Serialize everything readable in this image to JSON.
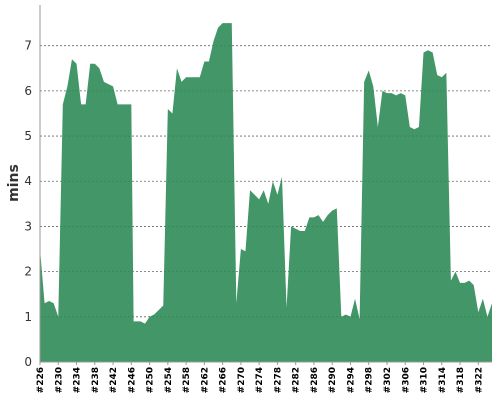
{
  "colors": {
    "area_fill": "#2e8b57",
    "area_opacity": 0.9,
    "grid": "#666666",
    "axis": "#999999",
    "background": "#ffffff"
  },
  "chart_data": {
    "type": "area",
    "title": "",
    "xlabel": "",
    "ylabel": "mins",
    "ylim": [
      0,
      7.9
    ],
    "yticks": [
      0,
      1,
      2,
      3,
      4,
      5,
      6,
      7
    ],
    "grid": true,
    "grid_style": "dashed-horizontal",
    "legend": "none",
    "x_range": [
      226,
      324
    ],
    "x_tick_labels": [
      "#226",
      "#230",
      "#234",
      "#238",
      "#242",
      "#246",
      "#250",
      "#254",
      "#258",
      "#262",
      "#266",
      "#270",
      "#274",
      "#278",
      "#282",
      "#286",
      "#290",
      "#294",
      "#298",
      "#302",
      "#306",
      "#310",
      "#314",
      "#318",
      "#322"
    ],
    "series": [
      {
        "points": [
          [
            226,
            2.5
          ],
          [
            227,
            1.3
          ],
          [
            228,
            1.35
          ],
          [
            229,
            1.3
          ],
          [
            230,
            1.0
          ],
          [
            231,
            5.7
          ],
          [
            232,
            6.1
          ],
          [
            233,
            6.7
          ],
          [
            234,
            6.6
          ],
          [
            235,
            5.7
          ],
          [
            236,
            5.7
          ],
          [
            237,
            6.6
          ],
          [
            238,
            6.6
          ],
          [
            239,
            6.5
          ],
          [
            240,
            6.2
          ],
          [
            241,
            6.15
          ],
          [
            242,
            6.1
          ],
          [
            243,
            5.7
          ],
          [
            244,
            5.7
          ],
          [
            245,
            5.7
          ],
          [
            246,
            5.7
          ],
          [
            246.5,
            0.9
          ],
          [
            247,
            0.9
          ],
          [
            248,
            0.9
          ],
          [
            249,
            0.85
          ],
          [
            250,
            1.0
          ],
          [
            251,
            1.05
          ],
          [
            252,
            1.15
          ],
          [
            253,
            1.25
          ],
          [
            254,
            5.6
          ],
          [
            255,
            5.5
          ],
          [
            256,
            6.5
          ],
          [
            257,
            6.2
          ],
          [
            258,
            6.3
          ],
          [
            259,
            6.3
          ],
          [
            260,
            6.3
          ],
          [
            261,
            6.3
          ],
          [
            262,
            6.65
          ],
          [
            263,
            6.65
          ],
          [
            264,
            7.1
          ],
          [
            265,
            7.4
          ],
          [
            266,
            7.5
          ],
          [
            267,
            7.5
          ],
          [
            268,
            7.5
          ],
          [
            269,
            1.3
          ],
          [
            270,
            2.5
          ],
          [
            271,
            2.45
          ],
          [
            272,
            3.8
          ],
          [
            273,
            3.7
          ],
          [
            274,
            3.6
          ],
          [
            275,
            3.8
          ],
          [
            276,
            3.5
          ],
          [
            277,
            4.0
          ],
          [
            278,
            3.7
          ],
          [
            279,
            4.1
          ],
          [
            280,
            1.2
          ],
          [
            281,
            3.0
          ],
          [
            282,
            2.95
          ],
          [
            283,
            2.9
          ],
          [
            284,
            2.9
          ],
          [
            285,
            3.2
          ],
          [
            286,
            3.2
          ],
          [
            287,
            3.25
          ],
          [
            288,
            3.1
          ],
          [
            289,
            3.25
          ],
          [
            290,
            3.35
          ],
          [
            291,
            3.4
          ],
          [
            292,
            1.0
          ],
          [
            293,
            1.05
          ],
          [
            294,
            1.0
          ],
          [
            295,
            1.4
          ],
          [
            296,
            0.95
          ],
          [
            297,
            6.2
          ],
          [
            298,
            6.45
          ],
          [
            299,
            6.1
          ],
          [
            300,
            5.2
          ],
          [
            301,
            6.0
          ],
          [
            302,
            5.95
          ],
          [
            303,
            5.95
          ],
          [
            304,
            5.9
          ],
          [
            305,
            5.95
          ],
          [
            306,
            5.9
          ],
          [
            307,
            5.2
          ],
          [
            308,
            5.15
          ],
          [
            309,
            5.2
          ],
          [
            310,
            6.85
          ],
          [
            311,
            6.9
          ],
          [
            312,
            6.85
          ],
          [
            313,
            6.35
          ],
          [
            314,
            6.3
          ],
          [
            315,
            6.4
          ],
          [
            316,
            1.8
          ],
          [
            317,
            2.0
          ],
          [
            318,
            1.75
          ],
          [
            319,
            1.75
          ],
          [
            320,
            1.8
          ],
          [
            321,
            1.7
          ],
          [
            322,
            1.1
          ],
          [
            323,
            1.4
          ],
          [
            324,
            1.0
          ],
          [
            325,
            1.3
          ]
        ]
      }
    ]
  }
}
